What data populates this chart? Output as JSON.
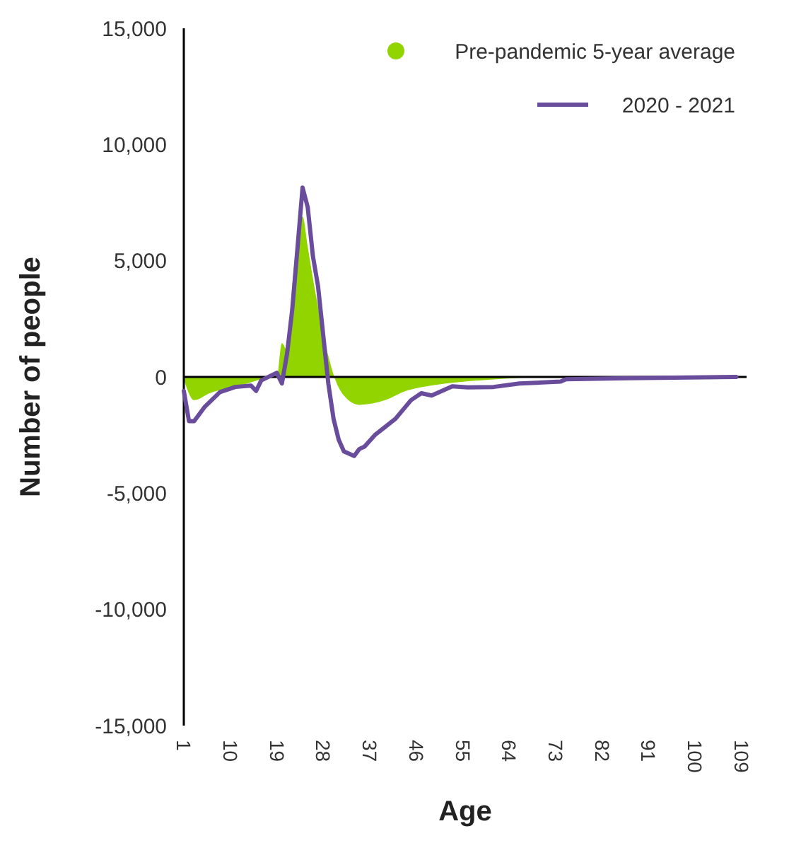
{
  "chart_data": {
    "type": "line",
    "xlabel": "Age",
    "ylabel": "Number of people",
    "xlim": [
      1,
      110
    ],
    "xticks": [
      1,
      10,
      19,
      28,
      37,
      46,
      55,
      64,
      73,
      82,
      91,
      100,
      109
    ],
    "ylim": [
      -15000,
      15000
    ],
    "yticks": [
      {
        "value": -15000,
        "label": "-15,000"
      },
      {
        "value": -10000,
        "label": "-10,000"
      },
      {
        "value": -5000,
        "label": "-5,000"
      },
      0,
      {
        "value": 5000,
        "label": "5,000"
      },
      {
        "value": 10000,
        "label": "10,000"
      },
      {
        "value": 15000,
        "label": "15,000"
      }
    ],
    "ref_lines": [
      {
        "axis": "y",
        "value": 0,
        "color": "#000000"
      }
    ],
    "legend": "top right",
    "marker": "none",
    "line_style": "solid",
    "series": [
      {
        "name": "Pre-pandemic 5-year average",
        "type": "area",
        "color": "#92d400",
        "x": [
          1,
          3,
          6,
          10,
          13,
          16,
          19,
          20,
          21,
          22,
          23,
          24,
          25,
          26,
          27,
          28,
          29,
          30,
          32,
          35,
          40,
          44,
          48,
          53,
          60,
          74,
          110
        ],
        "values": [
          -100,
          -1000,
          -700,
          -450,
          -300,
          -100,
          0,
          1450,
          1150,
          3900,
          6000,
          6900,
          5600,
          4250,
          3000,
          1800,
          900,
          100,
          -800,
          -1200,
          -1000,
          -600,
          -400,
          -250,
          -120,
          0,
          0
        ]
      },
      {
        "name": "2020 - 2021",
        "color": "#6a4c9c",
        "x": [
          1,
          2,
          3,
          5,
          8,
          11,
          14,
          15,
          16,
          19,
          20,
          21,
          22,
          23,
          24,
          25,
          26,
          27,
          28,
          29,
          30,
          31,
          32,
          34,
          35,
          36,
          38,
          42,
          45,
          47,
          49,
          51,
          53,
          56,
          61,
          66,
          74,
          75,
          87,
          108
        ],
        "values": [
          -600,
          -1900,
          -1900,
          -1300,
          -650,
          -430,
          -370,
          -600,
          -150,
          180,
          -280,
          1000,
          2900,
          5500,
          8150,
          7300,
          5200,
          3900,
          1800,
          -300,
          -1800,
          -2700,
          -3200,
          -3400,
          -3100,
          -3000,
          -2500,
          -1800,
          -1000,
          -700,
          -800,
          -600,
          -400,
          -450,
          -430,
          -280,
          -200,
          -100,
          -50,
          0
        ]
      }
    ]
  }
}
